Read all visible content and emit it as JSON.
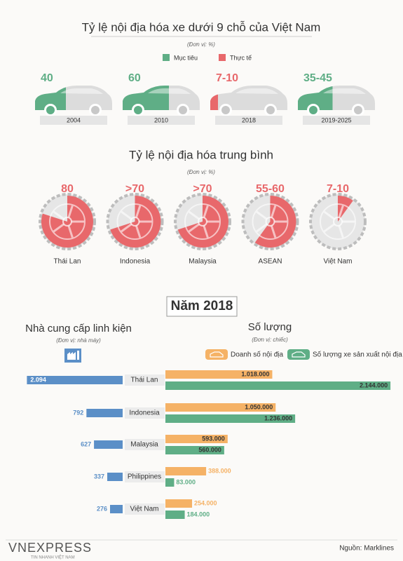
{
  "chart_data": [
    {
      "type": "car-fill",
      "title": "Tỷ lệ nội địa hóa xe dưới 9 chỗ của Việt Nam",
      "subtitle": "(Đơn vị: %)",
      "series": [
        {
          "name": "Mục tiêu",
          "color": "#5fae86"
        },
        {
          "name": "Thực tế",
          "color": "#e8686b"
        }
      ],
      "categories": [
        "2004",
        "2010",
        "2018",
        "2019-2025"
      ],
      "low": [
        40,
        60,
        7,
        35
      ],
      "high": [
        40,
        60,
        10,
        45
      ],
      "value_labels": [
        "40",
        "60",
        "7-10",
        "35-45"
      ],
      "colors": [
        "#5fae86",
        "#5fae86",
        "#e8686b",
        "#5fae86"
      ]
    },
    {
      "type": "tire-pie",
      "title": "Tỷ lệ nội địa hóa trung bình",
      "subtitle": "(Đơn vị: %)",
      "categories": [
        "Thái Lan",
        "Indonesia",
        "Malaysia",
        "ASEAN",
        "Việt Nam"
      ],
      "low": [
        80,
        70,
        70,
        55,
        7
      ],
      "high": [
        80,
        null,
        null,
        60,
        10
      ],
      "value_labels": [
        "80",
        ">70",
        ">70",
        "55-60",
        "7-10"
      ],
      "color": "#e8686b"
    },
    {
      "type": "paired-bar",
      "title": "Năm 2018",
      "categories": [
        "Thái Lan",
        "Indonesia",
        "Malaysia",
        "Philippines",
        "Việt Nam"
      ],
      "left": {
        "title": "Nhà cung cấp linh kiện",
        "subtitle": "(Đơn vị: nhà máy)",
        "color": "#5b8fc7",
        "xlim": [
          0,
          2100
        ],
        "values": [
          2094,
          792,
          627,
          337,
          276
        ],
        "value_labels": [
          "2.094",
          "792",
          "627",
          "337",
          "276"
        ]
      },
      "right": {
        "title": "Số lượng",
        "subtitle": "(Đơn vị: chiếc)",
        "xlim": [
          0,
          2150000
        ],
        "series": [
          {
            "name": "Doanh số nội địa",
            "color": "#f5b266",
            "values": [
              1018000,
              1050000,
              593000,
              388000,
              254000
            ],
            "value_labels": [
              "1.018.000",
              "1.050.000",
              "593.000",
              "388.000",
              "254.000"
            ]
          },
          {
            "name": "Số lượng xe sản xuất nội địa",
            "color": "#5fae86",
            "values": [
              2144000,
              1236000,
              560000,
              83000,
              184000
            ],
            "value_labels": [
              "2.144.000",
              "1.236.000",
              "560.000",
              "83.000",
              "184.000"
            ]
          }
        ]
      }
    }
  ],
  "footer": {
    "logo": "VNEXPRESS",
    "tagline": "TIN NHANH VIỆT NAM",
    "source": "Nguồn: Marklines"
  }
}
